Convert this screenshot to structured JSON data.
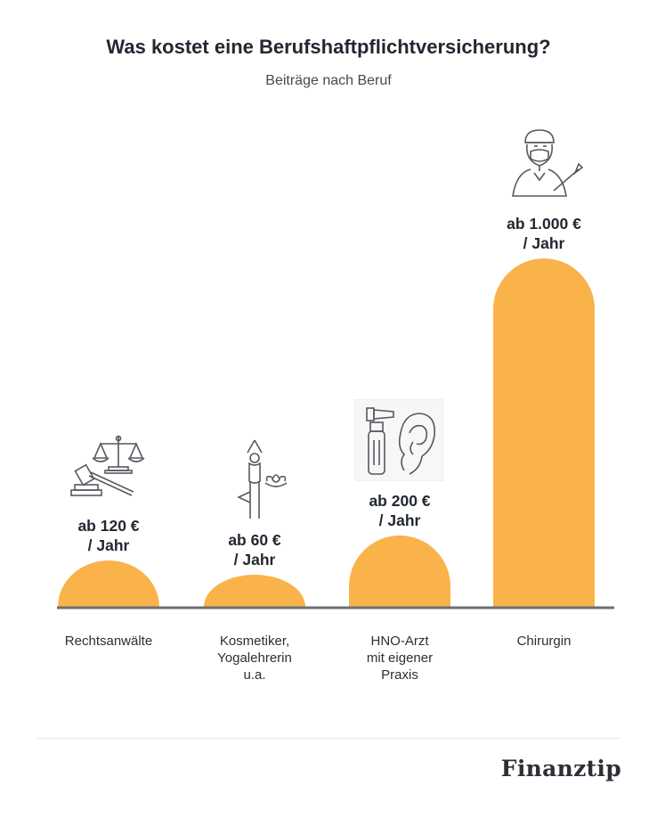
{
  "header": {
    "title": "Was kostet eine Berufshaftpflichtversicherung?",
    "subtitle": "Beiträge nach Beruf"
  },
  "chart_data": {
    "type": "bar",
    "title": "Was kostet eine Berufshaftpflichtversicherung?",
    "subtitle": "Beiträge nach Beruf",
    "categories": [
      "Rechtsanwälte",
      "Kosmetiker,\nYogalehrerin\nu.a.",
      "HNO-Arzt\nmit eigener\nPraxis",
      "Chirurgin"
    ],
    "values": [
      120,
      60,
      200,
      1000
    ],
    "value_labels": [
      "ab 120 €\n/ Jahr",
      "ab 60 €\n/ Jahr",
      "ab 200 €\n/ Jahr",
      "ab 1.000 €\n/ Jahr"
    ],
    "unit": "€ / Jahr",
    "icons": [
      "scales-gavel-icon",
      "yoga-lotus-icon",
      "otoscope-ear-icon",
      "surgeon-scalpel-icon"
    ],
    "bar_color": "#F9B34A",
    "baseline_color": "#6b6f75",
    "grid": false
  },
  "footer": {
    "brand": "Finanztip"
  }
}
